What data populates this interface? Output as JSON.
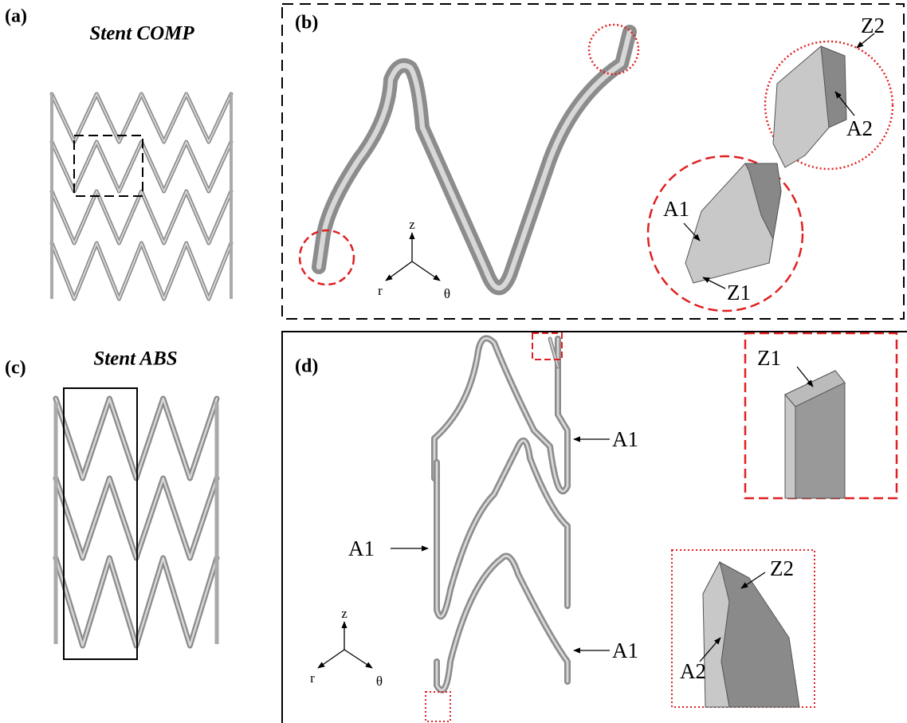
{
  "panels": {
    "a": {
      "label": "(a)",
      "title": "Stent COMP"
    },
    "b": {
      "label": "(b)",
      "callouts": [
        "Z2",
        "A2",
        "A1",
        "Z1"
      ],
      "axes": [
        "z",
        "r",
        "θ"
      ]
    },
    "c": {
      "label": "(c)",
      "title": "Stent ABS"
    },
    "d": {
      "label": "(d)",
      "callouts": [
        "Z1",
        "A1",
        "A1",
        "A1",
        "Z2",
        "A2"
      ],
      "axes": [
        "z",
        "r",
        "θ"
      ]
    }
  }
}
